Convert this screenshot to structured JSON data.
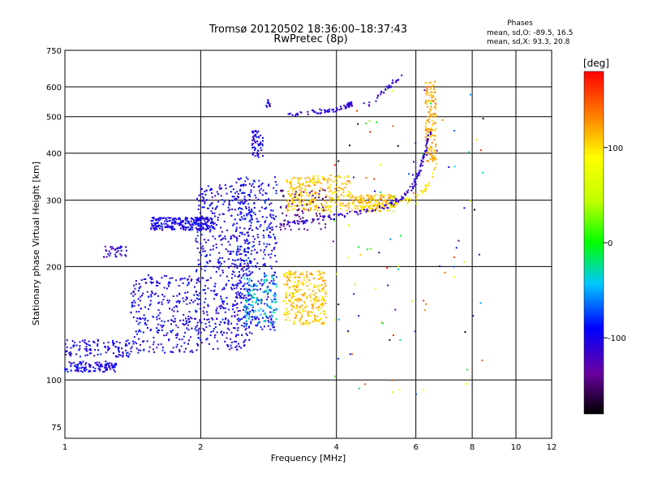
{
  "chart_data": {
    "type": "scatter",
    "title": "Tromsø 20120502 18:36:00–18:37:43",
    "subtitle": "RwPretec (8p)",
    "xlabel": "Frequency [MHz]",
    "ylabel": "Stationary phase Virtual Height [km]",
    "x_scale": "log",
    "y_scale": "log",
    "xlim": [
      1,
      12
    ],
    "ylim": [
      70,
      750
    ],
    "x_ticks": [
      {
        "v": 1,
        "label": "1"
      },
      {
        "v": 2,
        "label": "2"
      },
      {
        "v": 4,
        "label": "4"
      },
      {
        "v": 6,
        "label": "6"
      },
      {
        "v": 8,
        "label": "8"
      },
      {
        "v": 10,
        "label": "10"
      },
      {
        "v": 12,
        "label": "12"
      }
    ],
    "y_ticks": [
      {
        "v": 75,
        "label": "75"
      },
      {
        "v": 100,
        "label": "100"
      },
      {
        "v": 200,
        "label": "200"
      },
      {
        "v": 300,
        "label": "300"
      },
      {
        "v": 400,
        "label": "400"
      },
      {
        "v": 500,
        "label": "500"
      },
      {
        "v": 600,
        "label": "600"
      },
      {
        "v": 750,
        "label": "750"
      }
    ],
    "grid": true,
    "stats_header": "Phases",
    "stats": [
      "mean, sd,O: -89.5, 16.5",
      "mean, sd,X:  93.3, 20.8"
    ],
    "colorbar": {
      "unit": "[deg]",
      "range": [
        -180,
        180
      ],
      "ticks": [
        {
          "v": 100,
          "label": "100"
        },
        {
          "v": 0,
          "label": "0"
        },
        {
          "v": -100,
          "label": "-100"
        }
      ]
    },
    "point_clusters": [
      {
        "f0": 1.0,
        "f1": 1.3,
        "h0": 105,
        "h1": 112,
        "phase": -100,
        "n": 120
      },
      {
        "f0": 1.0,
        "f1": 1.42,
        "h0": 115,
        "h1": 128,
        "phase": -100,
        "n": 110
      },
      {
        "f0": 1.22,
        "f1": 1.38,
        "h0": 212,
        "h1": 228,
        "phase": -105,
        "n": 35
      },
      {
        "f0": 1.4,
        "f1": 2.0,
        "h0": 118,
        "h1": 190,
        "phase": -100,
        "n": 300
      },
      {
        "f0": 1.55,
        "f1": 2.15,
        "h0": 250,
        "h1": 270,
        "phase": -100,
        "n": 260
      },
      {
        "f0": 1.95,
        "f1": 2.6,
        "h0": 120,
        "h1": 330,
        "phase": -100,
        "n": 500
      },
      {
        "f0": 2.4,
        "f1": 2.95,
        "h0": 135,
        "h1": 350,
        "phase": -95,
        "n": 380
      },
      {
        "f0": 2.5,
        "f1": 2.95,
        "h0": 140,
        "h1": 190,
        "phase": -40,
        "n": 110
      },
      {
        "f0": 2.6,
        "f1": 2.75,
        "h0": 390,
        "h1": 460,
        "phase": -100,
        "n": 60
      },
      {
        "f0": 2.78,
        "f1": 2.85,
        "h0": 530,
        "h1": 555,
        "phase": -100,
        "n": 12
      },
      {
        "f0": 3.05,
        "f1": 3.8,
        "h0": 140,
        "h1": 195,
        "phase": 110,
        "n": 280
      },
      {
        "f0": 3.1,
        "f1": 4.3,
        "h0": 280,
        "h1": 350,
        "phase": 110,
        "n": 280
      },
      {
        "f0": 4.3,
        "f1": 5.4,
        "h0": 280,
        "h1": 310,
        "phase": 110,
        "n": 150
      },
      {
        "f0": 6.3,
        "f1": 6.65,
        "h0": 380,
        "h1": 620,
        "phase": 120,
        "n": 140
      },
      {
        "f0": 3.0,
        "f1": 3.8,
        "h0": 250,
        "h1": 320,
        "phase": -140,
        "n": 80
      },
      {
        "f0": 3.9,
        "f1": 8.5,
        "h0": 90,
        "h1": 600,
        "phase": 60,
        "n": 110
      }
    ],
    "point_traces": [
      {
        "x": [
          3.0,
          3.5,
          4.0,
          4.5,
          5.0,
          5.3,
          5.6,
          5.9,
          6.1,
          6.3,
          6.5
        ],
        "h": [
          258,
          265,
          272,
          278,
          285,
          292,
          305,
          325,
          355,
          400,
          460
        ],
        "phase": -110,
        "n": 150
      },
      {
        "x": [
          3.1,
          3.5,
          3.9,
          4.2,
          4.35
        ],
        "h": [
          505,
          515,
          520,
          530,
          545
        ],
        "phase": -110,
        "n": 70
      },
      {
        "x": [
          4.6,
          4.8,
          5.0,
          5.3,
          5.6
        ],
        "h": [
          535,
          545,
          570,
          610,
          640
        ],
        "phase": -110,
        "n": 30
      },
      {
        "x": [
          4.1,
          4.6,
          5.1,
          5.6,
          6.0,
          6.3,
          6.5,
          6.7
        ],
        "h": [
          292,
          288,
          290,
          295,
          305,
          320,
          345,
          380
        ],
        "phase": 100,
        "n": 60
      }
    ]
  }
}
